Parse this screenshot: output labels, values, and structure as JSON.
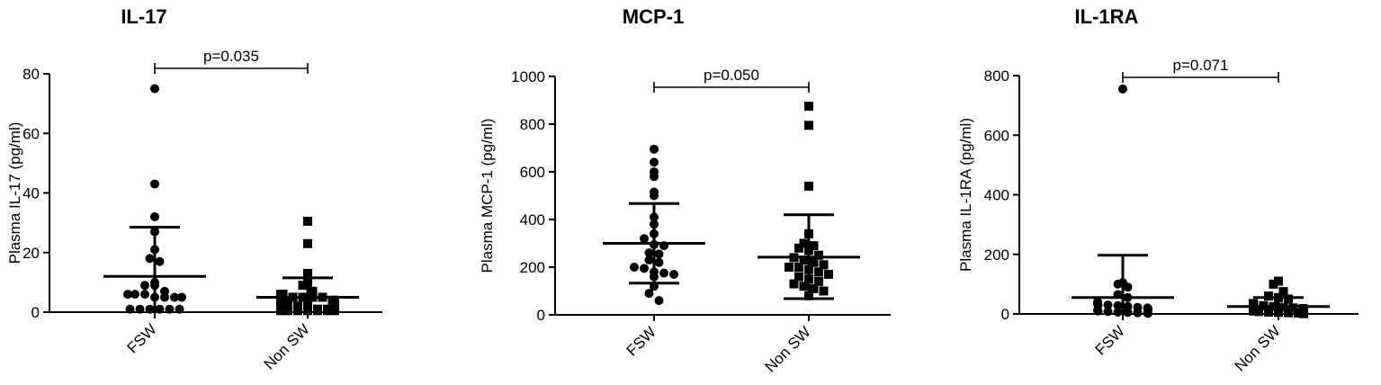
{
  "chart_data": [
    {
      "type": "scatter",
      "title": "IL-17",
      "ylabel": "Plasma IL-17 (pg/ml)",
      "ylim": [
        0,
        80
      ],
      "yticks": [
        "0",
        "20",
        "40",
        "60",
        "80"
      ],
      "categories": [
        "FSW",
        "Non SW"
      ],
      "pvalue": "p=0.035",
      "series": [
        {
          "marker": "circle",
          "mean": 12,
          "sd_low": 0,
          "sd_high": 28.5,
          "values": [
            75,
            43,
            32,
            27,
            21,
            18,
            17,
            10,
            9,
            9,
            7,
            6,
            6,
            6,
            5,
            5,
            5,
            5,
            1,
            1,
            1,
            1,
            1,
            1
          ]
        },
        {
          "marker": "square",
          "mean": 5,
          "sd_low": 0,
          "sd_high": 11.5,
          "values": [
            30.5,
            23,
            13,
            10,
            9,
            7,
            6,
            6,
            5,
            5,
            5,
            5,
            4,
            4,
            3,
            3,
            2,
            2,
            1,
            1,
            1,
            0.5,
            0.5,
            0.5,
            0.5,
            0.5,
            0.5,
            0.5
          ]
        }
      ]
    },
    {
      "type": "scatter",
      "title": "MCP-1",
      "ylabel": "Plasma MCP-1 (pg/ml)",
      "ylim": [
        0,
        1000
      ],
      "yticks": [
        "0",
        "200",
        "400",
        "600",
        "800",
        "1000"
      ],
      "categories": [
        "FSW",
        "Non SW"
      ],
      "pvalue": "p=0.050",
      "series": [
        {
          "marker": "circle",
          "mean": 300,
          "sd_low": 133,
          "sd_high": 467,
          "values": [
            695,
            640,
            600,
            580,
            515,
            500,
            410,
            380,
            340,
            320,
            295,
            290,
            260,
            255,
            230,
            220,
            200,
            195,
            180,
            175,
            170,
            160,
            120,
            90,
            60
          ]
        },
        {
          "marker": "square",
          "mean": 242,
          "sd_low": 68,
          "sd_high": 420,
          "values": [
            875,
            795,
            540,
            340,
            300,
            290,
            280,
            270,
            250,
            240,
            230,
            220,
            210,
            200,
            200,
            190,
            180,
            170,
            160,
            150,
            140,
            130,
            120,
            110,
            100,
            80
          ]
        }
      ]
    },
    {
      "type": "scatter",
      "title": "IL-1RA",
      "ylabel": "Plasma IL-1RA (pg/ml)",
      "ylim": [
        0,
        800
      ],
      "yticks": [
        "0",
        "200",
        "400",
        "600",
        "800"
      ],
      "categories": [
        "FSW",
        "Non SW"
      ],
      "pvalue": "p=0.071",
      "series": [
        {
          "marker": "circle",
          "mean": 55,
          "sd_low": 0,
          "sd_high": 197,
          "values": [
            755,
            105,
            100,
            90,
            65,
            55,
            40,
            35,
            30,
            30,
            28,
            25,
            22,
            20,
            18,
            15,
            12,
            10,
            8,
            6,
            5,
            4,
            3,
            2
          ]
        },
        {
          "marker": "square",
          "mean": 25,
          "sd_low": 0,
          "sd_high": 55,
          "values": [
            110,
            100,
            75,
            60,
            55,
            50,
            35,
            30,
            28,
            25,
            22,
            20,
            18,
            15,
            12,
            10,
            8,
            6,
            5,
            4,
            3,
            2,
            1
          ]
        }
      ]
    }
  ]
}
